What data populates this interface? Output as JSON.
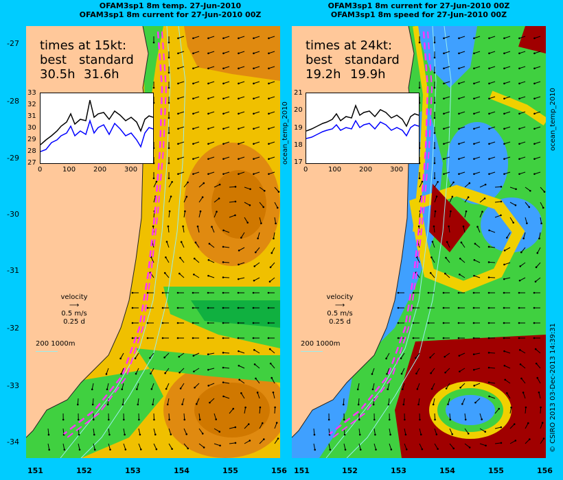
{
  "left_panel": {
    "title_line1": "OFAM3sp1 8m temp. 27-Jun-2010",
    "title_line2": "OFAM3sp1 8m current for 27-Jun-2010 00Z",
    "info_heading": "times at 15kt:",
    "info_col1": "best",
    "info_col2": "standard",
    "best_time": "30.5h",
    "standard_time": "31.6h",
    "inset": {
      "yticks": [
        "33",
        "32",
        "31",
        "30",
        "29",
        "28",
        "27"
      ],
      "xticks": [
        "0",
        "100",
        "200",
        "300"
      ],
      "ylim": [
        27,
        33
      ],
      "xlim": [
        0,
        360
      ]
    },
    "side_label": "ocean_temp_2010",
    "colors": {
      "land": "#ffc89a",
      "sea_warm": "#e08a10",
      "sea_mid": "#f0c000",
      "sea_cool": "#40d040",
      "sea_cold": "#10b040",
      "route": "#ff33ff"
    }
  },
  "right_panel": {
    "title_line1": "OFAM3sp1 8m current for 27-Jun-2010 00Z",
    "title_line2": "OFAM3sp1 8m speed for 27-Jun-2010 00Z",
    "info_heading": "times at 24kt:",
    "info_col1": "best",
    "info_col2": "standard",
    "best_time": "19.2h",
    "standard_time": "19.9h",
    "inset": {
      "yticks": [
        "21",
        "20",
        "19",
        "18",
        "17"
      ],
      "xticks": [
        "0",
        "100",
        "200",
        "300"
      ],
      "ylim": [
        17,
        21
      ],
      "xlim": [
        0,
        360
      ]
    },
    "side_label": "ocean_temp_2010",
    "colors": {
      "land": "#ffc89a",
      "slow": "#3fa0ff",
      "mid": "#40d040",
      "fast": "#f0d000",
      "fastest": "#a00000",
      "route": "#ff33ff"
    }
  },
  "legend": {
    "velocity_label": "velocity",
    "velocity_value": "0.5 m/s",
    "velocity_time": "0.25 d",
    "contour_label": "200  1000m"
  },
  "axes": {
    "latitudes": [
      "-27",
      "-28",
      "-29",
      "-30",
      "-31",
      "-32",
      "-33",
      "-34"
    ],
    "longitudes": [
      "151",
      "152",
      "153",
      "154",
      "155",
      "156"
    ]
  },
  "credit": "© CSIRO 2013   03-Dec-2013 14:39:31"
}
